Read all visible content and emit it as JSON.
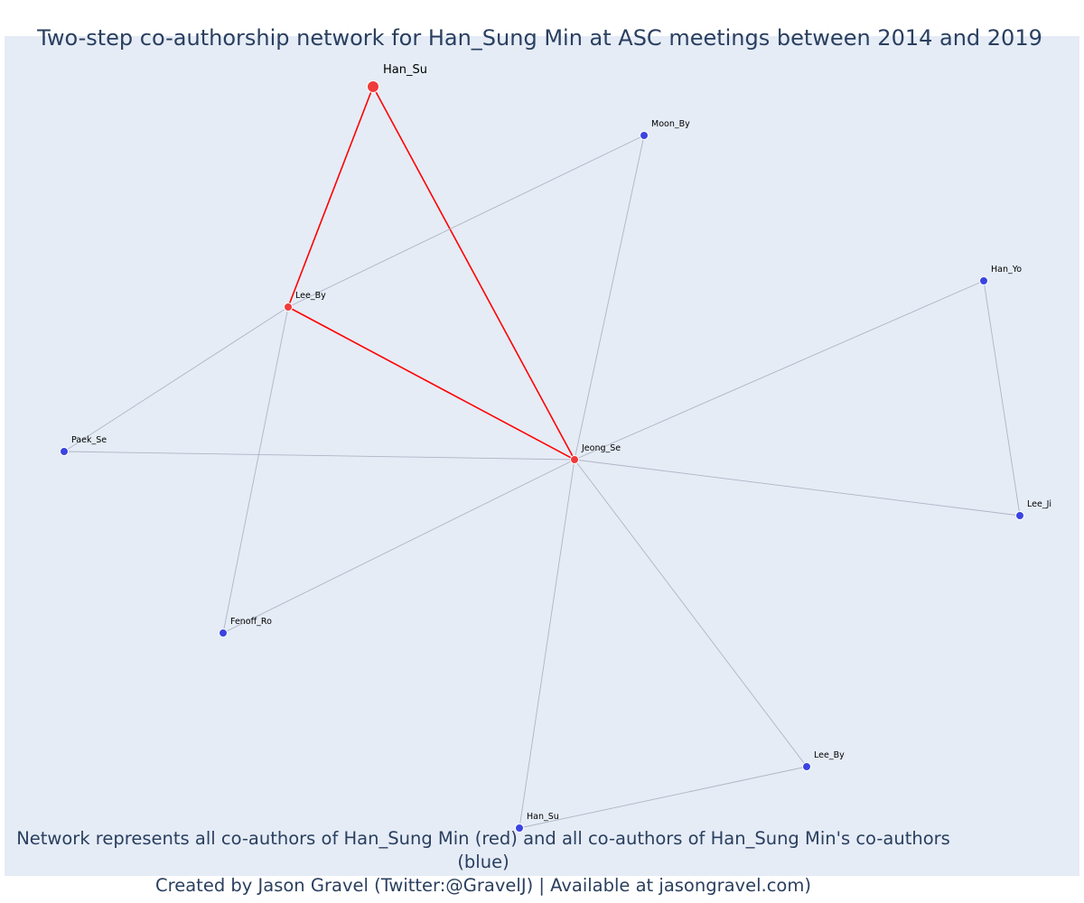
{
  "title": "Two-step co-authorship network for Han_Sung Min at ASC meetings between 2014 and 2019",
  "footer": {
    "line1": "Network represents all co-authors of Han_Sung Min (red) and all co-authors of Han_Sung Min's co-authors (blue)",
    "line2": "Created by Jason Gravel (Twitter:@GravelJ) | Available at jasongravel.com)"
  },
  "colors": {
    "background": "#e5ecf6",
    "focal_node": "#ef3b3b",
    "coauthor_node": "#3b44e0",
    "focal_edge": "#ff0000",
    "other_edge": "#b0b4c4"
  },
  "chart_data": {
    "type": "network",
    "nodes": [
      {
        "id": "han_su_focal",
        "label": "Han_Su",
        "group": "focal"
      },
      {
        "id": "lee_by_1",
        "label": "Lee_By",
        "group": "coauthor"
      },
      {
        "id": "jeong_se",
        "label": "Jeong_Se",
        "group": "coauthor"
      },
      {
        "id": "moon_by",
        "label": "Moon_By",
        "group": "second"
      },
      {
        "id": "han_yo",
        "label": "Han_Yo",
        "group": "second"
      },
      {
        "id": "paek_se",
        "label": "Paek_Se",
        "group": "second"
      },
      {
        "id": "lee_ji",
        "label": "Lee_Ji",
        "group": "second"
      },
      {
        "id": "fenoff_ro",
        "label": "Fenoff_Ro",
        "group": "second"
      },
      {
        "id": "lee_by_2",
        "label": "Lee_By",
        "group": "second"
      },
      {
        "id": "han_su_2",
        "label": "Han_Su",
        "group": "second"
      }
    ],
    "edges": [
      {
        "source": "han_su_focal",
        "target": "lee_by_1",
        "type": "focal"
      },
      {
        "source": "han_su_focal",
        "target": "jeong_se",
        "type": "focal"
      },
      {
        "source": "lee_by_1",
        "target": "jeong_se",
        "type": "focal"
      },
      {
        "source": "lee_by_1",
        "target": "moon_by",
        "type": "other"
      },
      {
        "source": "jeong_se",
        "target": "moon_by",
        "type": "other"
      },
      {
        "source": "lee_by_1",
        "target": "paek_se",
        "type": "other"
      },
      {
        "source": "lee_by_1",
        "target": "fenoff_ro",
        "type": "other"
      },
      {
        "source": "jeong_se",
        "target": "paek_se",
        "type": "other"
      },
      {
        "source": "jeong_se",
        "target": "fenoff_ro",
        "type": "other"
      },
      {
        "source": "jeong_se",
        "target": "han_yo",
        "type": "other"
      },
      {
        "source": "jeong_se",
        "target": "lee_ji",
        "type": "other"
      },
      {
        "source": "han_yo",
        "target": "lee_ji",
        "type": "other"
      },
      {
        "source": "jeong_se",
        "target": "lee_by_2",
        "type": "other"
      },
      {
        "source": "jeong_se",
        "target": "han_su_2",
        "type": "other"
      },
      {
        "source": "lee_by_2",
        "target": "han_su_2",
        "type": "other"
      }
    ]
  }
}
